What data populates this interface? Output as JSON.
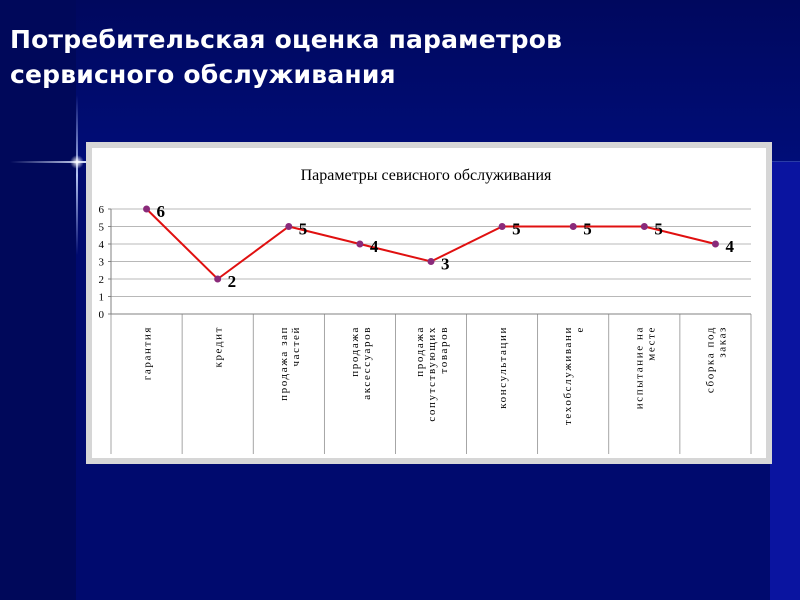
{
  "slide": {
    "title_line1": "Потребительская оценка параметров",
    "title_line2": "сервисного обслуживания"
  },
  "colors": {
    "background": "#000a6e",
    "series_line": "#e01010",
    "series_marker": "#8a2a7a",
    "chart_frame": "#d6d6d6",
    "plot_area": "#ffffff"
  },
  "chart_data": {
    "type": "line",
    "title": "Параметры севисного обслуживания",
    "categories": [
      [
        "гарантия"
      ],
      [
        "кредит"
      ],
      [
        "продажа зап",
        "частей"
      ],
      [
        "продажа",
        "аксессуаров"
      ],
      [
        "продажа",
        "сопутствующих",
        "товаров"
      ],
      [
        "консультации"
      ],
      [
        "техобслуживани",
        "е"
      ],
      [
        "испытание на",
        "месте"
      ],
      [
        "сборка под",
        "заказ"
      ]
    ],
    "series": [
      {
        "values": [
          6,
          2,
          5,
          4,
          3,
          5,
          5,
          5,
          4
        ]
      }
    ],
    "data_labels": [
      "6",
      "2",
      "5",
      "4",
      "3",
      "5",
      "5",
      "5",
      "4"
    ],
    "yticks": [
      "0",
      "1",
      "2",
      "3",
      "4",
      "5",
      "6"
    ],
    "ylim": [
      0,
      6
    ],
    "grid": true,
    "legend": "none"
  }
}
